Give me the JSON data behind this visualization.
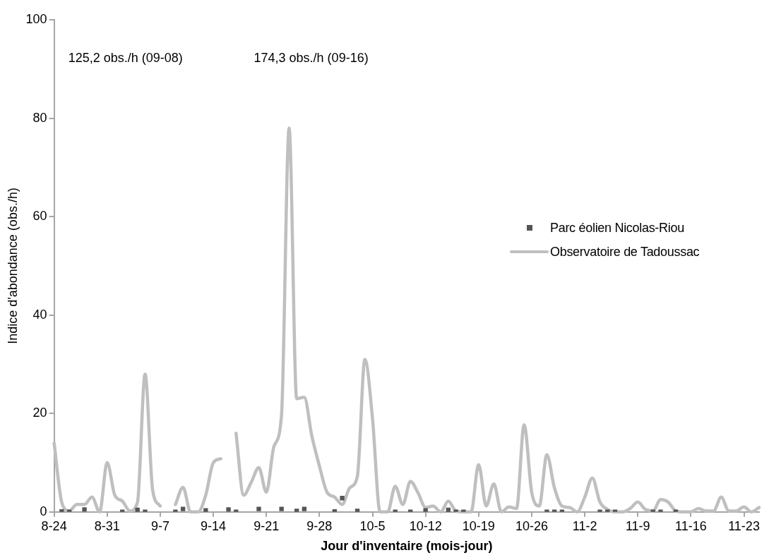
{
  "chart_data": {
    "type": "line",
    "xlabel": "Jour d'inventaire (mois-jour)",
    "ylabel": "Indice d'abondance (obs./h)",
    "categories": [
      "8-24",
      null,
      null,
      null,
      null,
      null,
      null,
      "8-31",
      null,
      null,
      null,
      null,
      null,
      null,
      "9-7",
      null,
      null,
      null,
      null,
      null,
      null,
      "9-14",
      null,
      null,
      null,
      null,
      null,
      null,
      "9-21",
      null,
      null,
      null,
      null,
      null,
      null,
      "9-28",
      null,
      null,
      null,
      null,
      null,
      null,
      "10-5",
      null,
      null,
      null,
      null,
      null,
      null,
      "10-12",
      null,
      null,
      null,
      null,
      null,
      null,
      "10-19",
      null,
      null,
      null,
      null,
      null,
      null,
      "10-26",
      null,
      null,
      null,
      null,
      null,
      null,
      "11-2",
      null,
      null,
      null,
      null,
      null,
      null,
      "11-9",
      null,
      null,
      null,
      null,
      null,
      null,
      "11-16",
      null,
      null,
      null,
      null,
      null,
      null,
      "11-23",
      null,
      null
    ],
    "series": [
      {
        "name": "Parc éolien Nicolas-Riou",
        "type": "scatter",
        "marker": "square",
        "color": "#555555",
        "values": [
          null,
          0.1,
          0,
          null,
          0.5,
          null,
          null,
          null,
          null,
          0,
          null,
          0.4,
          0,
          null,
          null,
          null,
          0,
          0.6,
          null,
          null,
          0.3,
          null,
          null,
          0.5,
          0,
          null,
          null,
          0.6,
          null,
          null,
          0.6,
          null,
          0.2,
          0.6,
          null,
          null,
          null,
          0.1,
          2.8,
          null,
          0.2,
          null,
          null,
          null,
          null,
          0,
          null,
          0,
          null,
          0.3,
          null,
          null,
          0.4,
          0,
          0,
          null,
          null,
          null,
          null,
          null,
          null,
          null,
          null,
          null,
          null,
          0,
          0,
          0,
          null,
          null,
          null,
          null,
          0,
          0,
          0,
          null,
          null,
          null,
          null,
          0,
          0,
          null,
          0,
          null,
          null,
          null,
          null,
          null,
          null,
          null,
          null,
          null,
          null,
          null
        ]
      },
      {
        "name": "Observatoire de Tadoussac",
        "type": "line",
        "marker": "none",
        "color": "#bfbfbf",
        "values": [
          14,
          2,
          0.2,
          1.5,
          1.5,
          3,
          0,
          10,
          3.4,
          2.2,
          0.2,
          2,
          28,
          4.4,
          1.2,
          null,
          1.5,
          5,
          0,
          0,
          3.4,
          10,
          10.8,
          null,
          16,
          3.4,
          6,
          9,
          4,
          13.3,
          19.7,
          78,
          23,
          23.3,
          15.4,
          9.3,
          4,
          3,
          1.5,
          4.9,
          7.2,
          31,
          19,
          0,
          0,
          5.2,
          1.5,
          6.2,
          3.9,
          0.9,
          1.2,
          0,
          2.2,
          0.2,
          0,
          0,
          9.6,
          1.2,
          5.7,
          0,
          1,
          0.7,
          17.7,
          4,
          1.2,
          11.6,
          4.9,
          1.2,
          0.9,
          0,
          3,
          6.9,
          2,
          0.5,
          0,
          0,
          0.7,
          2,
          0.5,
          0.2,
          2.5,
          2,
          0.2,
          0,
          0,
          0.7,
          0.2,
          0.2,
          3,
          0.2,
          0.2,
          1,
          0,
          0.9
        ]
      }
    ],
    "ylim": [
      0,
      100
    ],
    "yticks": [
      0,
      20,
      40,
      60,
      80,
      100
    ],
    "grid": false,
    "legend": "right",
    "annotations": [
      "125,2 obs./h (09-08)",
      "174,3 obs./h (09-16)"
    ]
  }
}
